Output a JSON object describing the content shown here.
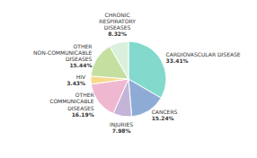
{
  "chart_data": {
    "type": "pie",
    "categories": [
      "CARDIOVASCULAR DISEASE",
      "CANCERS",
      "INJURIES",
      "OTHER\nCOMMUNICABLE\nDISEASES",
      "HIV",
      "OTHER\nNON-COMMUNICABLE\nDISEASES",
      "CHRONIC\nRESPIRATORY\nDISEASES"
    ],
    "values": [
      33.41,
      15.24,
      7.98,
      16.19,
      3.43,
      15.44,
      8.32
    ],
    "value_labels": [
      "33.41%",
      "15.24%",
      "7.98%",
      "16.19%",
      "3.43%",
      "15.44%",
      "8.32%"
    ],
    "colors": [
      "#82d9cc",
      "#8eabd6",
      "#c4b5d8",
      "#f0b8d0",
      "#f7d98a",
      "#c5dfa0",
      "#daf0dc"
    ],
    "data_labels": true
  }
}
